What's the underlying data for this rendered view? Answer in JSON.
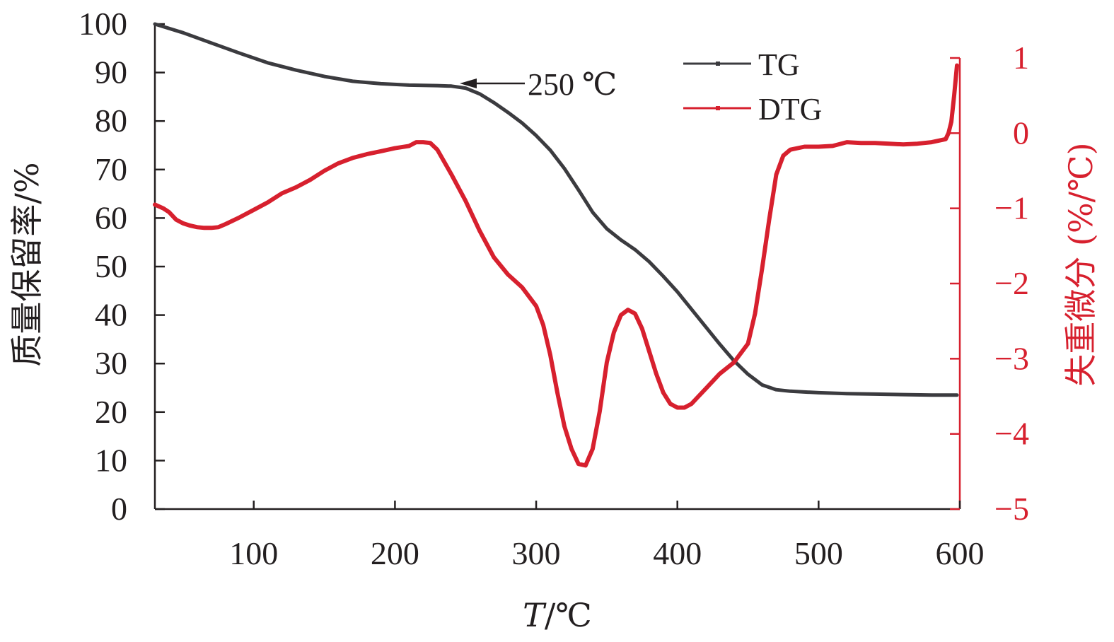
{
  "chart_data": {
    "type": "line",
    "xlabel_italic": "T",
    "xlabel_rest": "/℃",
    "ylabel_left": "质量保留率/%",
    "ylabel_right": "失重微分 (%/℃)",
    "xlim": [
      30,
      600
    ],
    "ylim_left": [
      0,
      100
    ],
    "ylim_right": [
      -5,
      1
    ],
    "x_ticks": [
      100,
      200,
      300,
      400,
      500,
      600
    ],
    "y_left_ticks": [
      0,
      10,
      20,
      30,
      40,
      50,
      60,
      70,
      80,
      90,
      100
    ],
    "y_right_ticks": [
      -5,
      -4,
      -3,
      -2,
      -1,
      0,
      1
    ],
    "y_right_tick_labels": [
      "−5",
      "−4",
      "−3",
      "−2",
      "−1",
      "0",
      "1"
    ],
    "annotation": {
      "text": "250 ℃",
      "x": 250,
      "y": 87
    },
    "legend_position": "top-right",
    "series": [
      {
        "name": "TG",
        "axis": "left",
        "color": "#3b3b3f",
        "x": [
          30,
          50,
          70,
          90,
          110,
          130,
          150,
          170,
          190,
          210,
          230,
          240,
          250,
          260,
          270,
          280,
          290,
          300,
          310,
          320,
          330,
          340,
          350,
          360,
          370,
          380,
          390,
          400,
          410,
          420,
          430,
          440,
          450,
          460,
          470,
          480,
          500,
          520,
          540,
          560,
          580,
          598
        ],
        "values": [
          100,
          98.2,
          96.1,
          94,
          92,
          90.5,
          89.2,
          88.2,
          87.7,
          87.4,
          87.3,
          87.2,
          86.8,
          85.6,
          83.8,
          81.8,
          79.6,
          77,
          74,
          70.2,
          65.8,
          61.2,
          57.8,
          55.5,
          53.5,
          51,
          48,
          44.8,
          41.2,
          37.6,
          34,
          30.6,
          27.8,
          25.6,
          24.6,
          24.3,
          24,
          23.8,
          23.7,
          23.6,
          23.5,
          23.5
        ]
      },
      {
        "name": "DTG",
        "axis": "right",
        "color": "#d7202e",
        "x": [
          30,
          36,
          40,
          45,
          50,
          55,
          60,
          65,
          70,
          75,
          80,
          90,
          100,
          110,
          120,
          130,
          140,
          150,
          160,
          170,
          180,
          190,
          200,
          210,
          215,
          220,
          225,
          230,
          240,
          250,
          260,
          270,
          280,
          290,
          300,
          305,
          310,
          315,
          320,
          325,
          330,
          335,
          340,
          345,
          350,
          355,
          360,
          365,
          370,
          375,
          380,
          385,
          390,
          395,
          400,
          405,
          410,
          415,
          420,
          430,
          440,
          450,
          455,
          460,
          465,
          470,
          475,
          480,
          490,
          500,
          510,
          520,
          530,
          540,
          550,
          560,
          570,
          580,
          590,
          592,
          594,
          596,
          598
        ],
        "values": [
          -0.95,
          -1.0,
          -1.05,
          -1.15,
          -1.2,
          -1.23,
          -1.25,
          -1.26,
          -1.26,
          -1.25,
          -1.21,
          -1.12,
          -1.02,
          -0.92,
          -0.8,
          -0.72,
          -0.62,
          -0.5,
          -0.4,
          -0.33,
          -0.28,
          -0.24,
          -0.2,
          -0.17,
          -0.12,
          -0.12,
          -0.13,
          -0.22,
          -0.55,
          -0.9,
          -1.3,
          -1.65,
          -1.88,
          -2.05,
          -2.3,
          -2.55,
          -2.95,
          -3.45,
          -3.9,
          -4.2,
          -4.4,
          -4.42,
          -4.2,
          -3.7,
          -3.05,
          -2.65,
          -2.42,
          -2.35,
          -2.4,
          -2.6,
          -2.9,
          -3.2,
          -3.45,
          -3.6,
          -3.65,
          -3.65,
          -3.6,
          -3.5,
          -3.4,
          -3.2,
          -3.05,
          -2.8,
          -2.4,
          -1.8,
          -1.15,
          -0.55,
          -0.3,
          -0.22,
          -0.18,
          -0.18,
          -0.17,
          -0.12,
          -0.13,
          -0.13,
          -0.14,
          -0.15,
          -0.14,
          -0.12,
          -0.08,
          0.0,
          0.15,
          0.5,
          0.9
        ]
      }
    ]
  }
}
